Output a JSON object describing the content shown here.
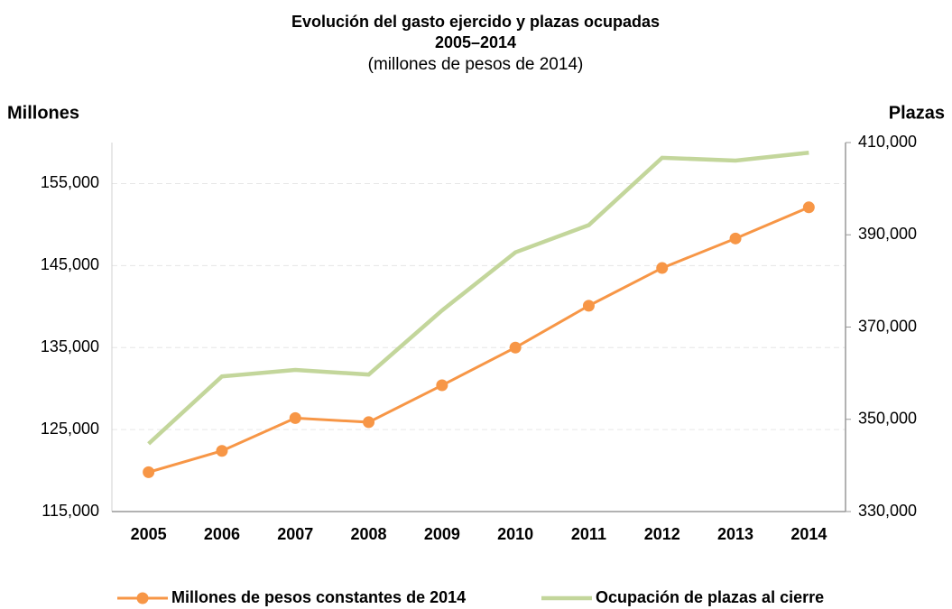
{
  "chart_data": {
    "type": "line",
    "title": "Evolución del gasto ejercido y plazas ocupadas",
    "title_line2": "2005–2014",
    "subtitle": "(millones de pesos de 2014)",
    "y_label": "Millones",
    "y2_label": "Plazas",
    "categories": [
      "2005",
      "2006",
      "2007",
      "2008",
      "2009",
      "2010",
      "2011",
      "2012",
      "2013",
      "2014"
    ],
    "series": [
      {
        "name": "Millones de pesos constantes de 2014",
        "color": "#f79646",
        "marker": true,
        "values": [
          119800,
          122400,
          126400,
          125900,
          130400,
          135000,
          140100,
          144700,
          148300,
          152100
        ]
      },
      {
        "name": "Ocupación de plazas al cierre",
        "color": "#c3d69b",
        "marker": false,
        "axis": "y2",
        "values": [
          344700,
          359300,
          360700,
          359700,
          373600,
          386200,
          392100,
          406700,
          406100,
          407800
        ]
      }
    ],
    "ylim": [
      115000,
      160000
    ],
    "yticks": [
      {
        "value": 115000,
        "label": "115,000"
      },
      {
        "value": 125000,
        "label": "125,000"
      },
      {
        "value": 135000,
        "label": "135,000"
      },
      {
        "value": 145000,
        "label": "145,000"
      },
      {
        "value": 155000,
        "label": "155,000"
      }
    ],
    "y2lim": [
      330000,
      410000
    ],
    "y2ticks": [
      {
        "value": 330000,
        "label": "330,000"
      },
      {
        "value": 350000,
        "label": "350,000"
      },
      {
        "value": 370000,
        "label": "370,000"
      },
      {
        "value": 390000,
        "label": "390,000"
      },
      {
        "value": 410000,
        "label": "410,000"
      }
    ],
    "grid": true,
    "legend": "bottom"
  }
}
